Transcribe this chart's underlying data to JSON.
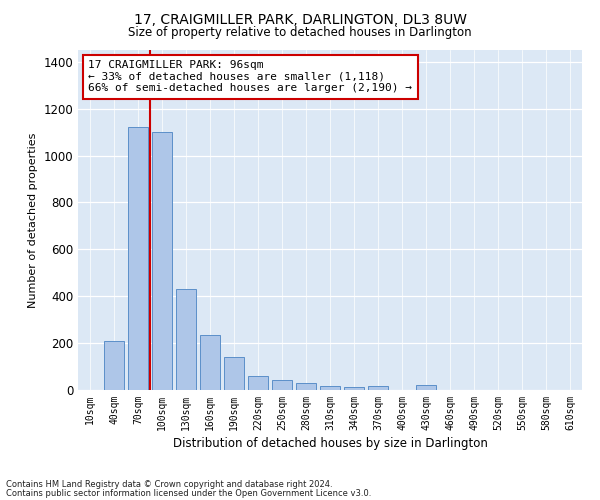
{
  "title": "17, CRAIGMILLER PARK, DARLINGTON, DL3 8UW",
  "subtitle": "Size of property relative to detached houses in Darlington",
  "xlabel": "Distribution of detached houses by size in Darlington",
  "ylabel": "Number of detached properties",
  "bar_color": "#aec6e8",
  "bar_edge_color": "#5b8fc9",
  "background_color": "#dce8f5",
  "annotation_text": "17 CRAIGMILLER PARK: 96sqm\n← 33% of detached houses are smaller (1,118)\n66% of semi-detached houses are larger (2,190) →",
  "vline_color": "#cc0000",
  "categories": [
    "10sqm",
    "40sqm",
    "70sqm",
    "100sqm",
    "130sqm",
    "160sqm",
    "190sqm",
    "220sqm",
    "250sqm",
    "280sqm",
    "310sqm",
    "340sqm",
    "370sqm",
    "400sqm",
    "430sqm",
    "460sqm",
    "490sqm",
    "520sqm",
    "550sqm",
    "580sqm",
    "610sqm"
  ],
  "values": [
    0,
    210,
    1120,
    1100,
    430,
    235,
    140,
    60,
    42,
    28,
    18,
    12,
    15,
    0,
    20,
    0,
    0,
    0,
    0,
    0,
    0
  ],
  "ylim": [
    0,
    1450
  ],
  "yticks": [
    0,
    200,
    400,
    600,
    800,
    1000,
    1200,
    1400
  ],
  "footnote1": "Contains HM Land Registry data © Crown copyright and database right 2024.",
  "footnote2": "Contains public sector information licensed under the Open Government Licence v3.0."
}
